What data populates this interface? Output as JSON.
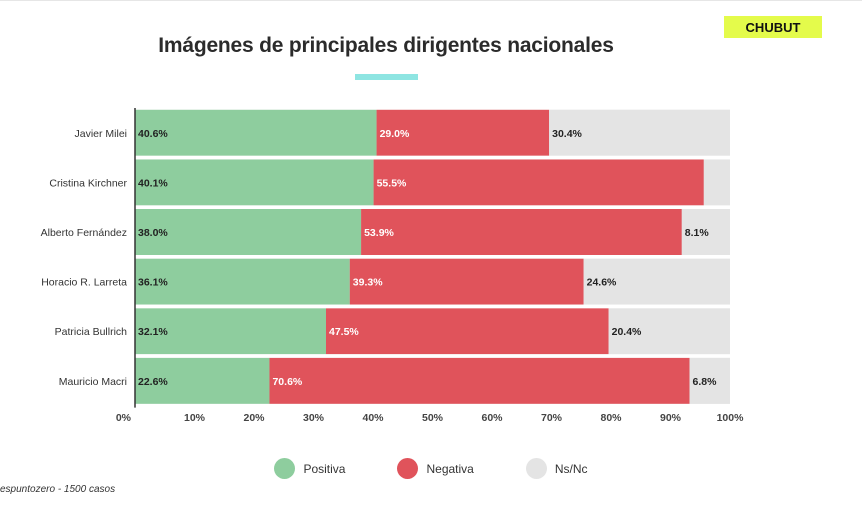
{
  "badge": {
    "text": "CHUBUT",
    "color": "#e4fb4b"
  },
  "accent_color": "#8ee5e2",
  "source_text": "espuntozero - 1500 casos",
  "chart_data": {
    "type": "bar",
    "orientation": "horizontal",
    "stacked": true,
    "title": "Imágenes de principales dirigentes nacionales",
    "categories": [
      "Javier Milei",
      "Cristina Kirchner",
      "Alberto Fernández",
      "Horacio R. Larreta",
      "Patricia Bullrich",
      "Mauricio Macri"
    ],
    "series": [
      {
        "name": "Positiva",
        "color": "#8ecd9e",
        "values": [
          40.6,
          40.1,
          38.0,
          36.1,
          32.1,
          22.6
        ],
        "labels": [
          "40.6%",
          "40.1%",
          "38.0%",
          "36.1%",
          "32.1%",
          "22.6%"
        ]
      },
      {
        "name": "Negativa",
        "color": "#e0535b",
        "values": [
          29.0,
          55.5,
          53.9,
          39.3,
          47.5,
          70.6
        ],
        "labels": [
          "29.0%",
          "55.5%",
          "53.9%",
          "39.3%",
          "47.5%",
          "70.6%"
        ]
      },
      {
        "name": "Ns/Nc",
        "color": "#e4e4e4",
        "values": [
          30.4,
          4.4,
          8.1,
          24.6,
          20.4,
          6.8
        ],
        "labels": [
          "30.4%",
          "",
          "8.1%",
          "24.6%",
          "20.4%",
          "6.8%"
        ]
      }
    ],
    "xlim": [
      0,
      100
    ],
    "xticks": [
      "0%",
      "10%",
      "20%",
      "30%",
      "40%",
      "50%",
      "60%",
      "70%",
      "80%",
      "90%",
      "100%"
    ],
    "legend_position": "bottom",
    "grid": false
  }
}
